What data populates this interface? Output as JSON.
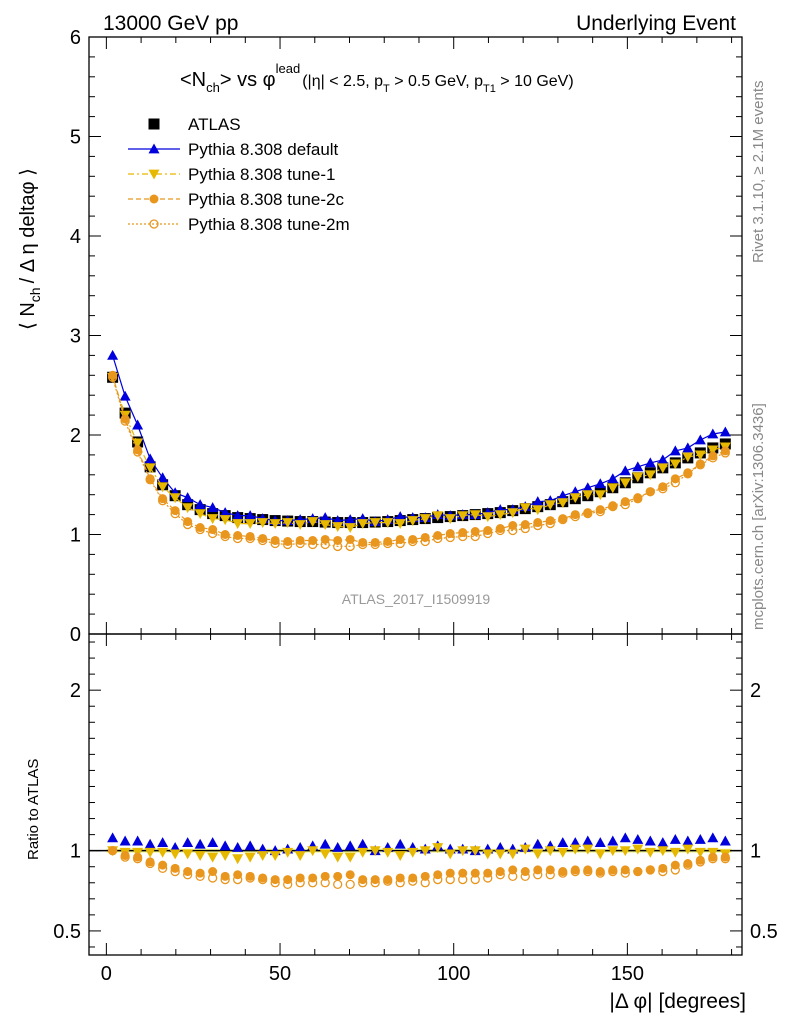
{
  "header": {
    "left": "13000 GeV pp",
    "right": "Underlying Event"
  },
  "side_text": {
    "rivet": "Rivet 3.1.10, ≥ 2.1M events",
    "mcplots": "mcplots.cern.ch [arXiv:1306.3436]"
  },
  "watermark": "ATLAS_2017_I1509919",
  "plot_title": {
    "main": "<N",
    "main_sub": "ch",
    "vs": "> vs φ",
    "vs_sup": "lead",
    "cuts_1": "(|η| < 2.5, p",
    "cuts_1_sub": "T",
    "cuts_2": " > 0.5 GeV, p",
    "cuts_2_sub": "T1",
    "cuts_3": " > 10 GeV)"
  },
  "ylabel_main": {
    "part1": "⟨ N",
    "sub": "ch",
    "part2": "/ Δ η deltaφ ⟩"
  },
  "ylabel_ratio": "Ratio to ATLAS",
  "xlabel": "|Δ φ| [degrees]",
  "colors": {
    "atlas": "#000000",
    "default": "#0000dd",
    "tune1": "#e6b800",
    "tune2c": "#e8961e",
    "tune2m": "#e8961e",
    "band": "#f0f58a"
  },
  "chart_data": [
    {
      "type": "scatter",
      "panel": "main",
      "xlim": [
        -5,
        183
      ],
      "ylim": [
        0,
        6
      ],
      "yticks": [
        "0",
        "1",
        "2",
        "3",
        "4",
        "5",
        "6"
      ],
      "x": [
        1.8,
        5.4,
        9.0,
        12.6,
        16.2,
        19.8,
        23.4,
        27.0,
        30.6,
        34.2,
        37.8,
        41.4,
        45.0,
        48.6,
        52.2,
        55.8,
        59.4,
        63.0,
        66.6,
        70.2,
        73.8,
        77.4,
        81.0,
        84.6,
        88.2,
        91.8,
        95.4,
        99.0,
        102.6,
        106.2,
        109.8,
        113.4,
        117.0,
        120.6,
        124.2,
        127.8,
        131.4,
        135.0,
        138.6,
        142.2,
        145.8,
        149.4,
        153.0,
        156.6,
        160.2,
        163.8,
        167.4,
        171.0,
        174.6,
        178.2
      ],
      "series": [
        {
          "name": "ATLAS",
          "marker": "square",
          "values": [
            2.58,
            2.22,
            1.93,
            1.68,
            1.5,
            1.39,
            1.3,
            1.25,
            1.21,
            1.19,
            1.17,
            1.16,
            1.15,
            1.14,
            1.135,
            1.13,
            1.13,
            1.125,
            1.12,
            1.12,
            1.12,
            1.125,
            1.13,
            1.14,
            1.15,
            1.16,
            1.17,
            1.18,
            1.19,
            1.2,
            1.21,
            1.22,
            1.24,
            1.26,
            1.28,
            1.3,
            1.33,
            1.36,
            1.39,
            1.43,
            1.47,
            1.52,
            1.57,
            1.62,
            1.67,
            1.72,
            1.77,
            1.82,
            1.87,
            1.91
          ]
        },
        {
          "name": "Pythia 8.308 default",
          "marker": "triangle-up",
          "values": [
            2.8,
            2.39,
            2.1,
            1.76,
            1.57,
            1.42,
            1.37,
            1.3,
            1.27,
            1.22,
            1.19,
            1.19,
            1.16,
            1.14,
            1.14,
            1.15,
            1.16,
            1.17,
            1.14,
            1.15,
            1.16,
            1.13,
            1.15,
            1.18,
            1.17,
            1.17,
            1.2,
            1.19,
            1.2,
            1.2,
            1.22,
            1.25,
            1.25,
            1.28,
            1.33,
            1.34,
            1.39,
            1.43,
            1.47,
            1.51,
            1.56,
            1.64,
            1.68,
            1.72,
            1.75,
            1.84,
            1.87,
            1.95,
            2.01,
            2.03
          ]
        },
        {
          "name": "Pythia 8.308 tune-1",
          "marker": "triangle-down",
          "values": [
            2.58,
            2.2,
            1.92,
            1.67,
            1.48,
            1.37,
            1.27,
            1.21,
            1.16,
            1.15,
            1.11,
            1.11,
            1.12,
            1.11,
            1.12,
            1.1,
            1.13,
            1.1,
            1.08,
            1.07,
            1.11,
            1.12,
            1.12,
            1.11,
            1.14,
            1.16,
            1.19,
            1.16,
            1.19,
            1.2,
            1.18,
            1.2,
            1.22,
            1.27,
            1.25,
            1.3,
            1.32,
            1.37,
            1.4,
            1.4,
            1.47,
            1.52,
            1.58,
            1.6,
            1.67,
            1.71,
            1.78,
            1.8,
            1.85,
            1.88
          ]
        },
        {
          "name": "Pythia 8.308 tune-2c",
          "marker": "circle",
          "values": [
            2.6,
            2.16,
            1.85,
            1.56,
            1.36,
            1.24,
            1.13,
            1.07,
            1.05,
            1.0,
            0.99,
            0.98,
            0.96,
            0.94,
            0.93,
            0.94,
            0.94,
            0.95,
            0.94,
            0.95,
            0.92,
            0.92,
            0.93,
            0.95,
            0.95,
            0.97,
            0.99,
            1.01,
            1.02,
            1.03,
            1.04,
            1.06,
            1.09,
            1.1,
            1.12,
            1.14,
            1.16,
            1.2,
            1.22,
            1.25,
            1.29,
            1.33,
            1.37,
            1.43,
            1.48,
            1.56,
            1.62,
            1.71,
            1.79,
            1.84
          ]
        },
        {
          "name": "Pythia 8.308 tune-2m",
          "marker": "circle-open",
          "values": [
            2.58,
            2.14,
            1.83,
            1.55,
            1.34,
            1.21,
            1.1,
            1.05,
            1.01,
            0.98,
            0.96,
            0.96,
            0.94,
            0.91,
            0.9,
            0.91,
            0.9,
            0.9,
            0.88,
            0.88,
            0.9,
            0.9,
            0.91,
            0.91,
            0.93,
            0.93,
            0.96,
            0.97,
            0.98,
            0.98,
            1.01,
            1.04,
            1.04,
            1.06,
            1.09,
            1.11,
            1.15,
            1.18,
            1.21,
            1.23,
            1.28,
            1.3,
            1.36,
            1.43,
            1.46,
            1.52,
            1.61,
            1.7,
            1.77,
            1.82
          ]
        }
      ]
    },
    {
      "type": "scatter",
      "panel": "ratio",
      "xlim": [
        -5,
        183
      ],
      "ylim": [
        0.35,
        2.35
      ],
      "yticks": [
        "0.5",
        "1",
        "2"
      ],
      "xticks": [
        "0",
        "50",
        "100",
        "150"
      ],
      "x": [
        1.8,
        5.4,
        9.0,
        12.6,
        16.2,
        19.8,
        23.4,
        27.0,
        30.6,
        34.2,
        37.8,
        41.4,
        45.0,
        48.6,
        52.2,
        55.8,
        59.4,
        63.0,
        66.6,
        70.2,
        73.8,
        77.4,
        81.0,
        84.6,
        88.2,
        91.8,
        95.4,
        99.0,
        102.6,
        106.2,
        109.8,
        113.4,
        117.0,
        120.6,
        124.2,
        127.8,
        131.4,
        135.0,
        138.6,
        142.2,
        145.8,
        149.4,
        153.0,
        156.6,
        160.2,
        163.8,
        167.4,
        171.0,
        174.6,
        178.2
      ],
      "series": [
        {
          "name": "Pythia 8.308 default",
          "values": [
            1.08,
            1.06,
            1.06,
            1.04,
            1.05,
            1.02,
            1.05,
            1.04,
            1.05,
            1.03,
            1.02,
            1.03,
            1.01,
            1.0,
            1.01,
            1.02,
            1.03,
            1.04,
            1.02,
            1.03,
            1.04,
            1.0,
            1.02,
            1.04,
            1.02,
            1.01,
            1.03,
            1.01,
            1.01,
            1.0,
            1.01,
            1.02,
            1.01,
            1.02,
            1.04,
            1.03,
            1.05,
            1.05,
            1.06,
            1.05,
            1.06,
            1.08,
            1.07,
            1.06,
            1.05,
            1.07,
            1.06,
            1.07,
            1.08,
            1.06
          ]
        },
        {
          "name": "Pythia 8.308 tune-1",
          "values": [
            1.0,
            0.99,
            0.99,
            0.99,
            0.99,
            0.98,
            0.98,
            0.97,
            0.96,
            0.97,
            0.95,
            0.96,
            0.97,
            0.97,
            0.99,
            0.97,
            1.0,
            0.98,
            0.96,
            0.96,
            0.99,
            1.0,
            0.99,
            0.97,
            0.99,
            1.0,
            1.02,
            0.98,
            1.0,
            1.0,
            0.98,
            0.98,
            0.98,
            1.01,
            0.98,
            1.0,
            0.99,
            1.01,
            1.01,
            0.98,
            1.0,
            1.0,
            1.01,
            0.99,
            1.0,
            0.99,
            1.01,
            0.99,
            0.99,
            0.98
          ]
        },
        {
          "name": "Pythia 8.308 tune-2c",
          "values": [
            1.0,
            0.97,
            0.96,
            0.93,
            0.91,
            0.89,
            0.87,
            0.86,
            0.87,
            0.84,
            0.85,
            0.84,
            0.83,
            0.82,
            0.82,
            0.83,
            0.83,
            0.84,
            0.84,
            0.85,
            0.82,
            0.82,
            0.82,
            0.83,
            0.83,
            0.84,
            0.85,
            0.86,
            0.86,
            0.86,
            0.86,
            0.87,
            0.88,
            0.87,
            0.88,
            0.88,
            0.87,
            0.88,
            0.88,
            0.87,
            0.88,
            0.88,
            0.87,
            0.88,
            0.89,
            0.91,
            0.92,
            0.94,
            0.96,
            0.96
          ]
        },
        {
          "name": "Pythia 8.308 tune-2m",
          "values": [
            1.0,
            0.96,
            0.95,
            0.92,
            0.89,
            0.87,
            0.85,
            0.84,
            0.83,
            0.82,
            0.82,
            0.83,
            0.82,
            0.8,
            0.79,
            0.8,
            0.8,
            0.8,
            0.79,
            0.79,
            0.8,
            0.8,
            0.81,
            0.8,
            0.81,
            0.8,
            0.82,
            0.82,
            0.82,
            0.82,
            0.83,
            0.85,
            0.84,
            0.84,
            0.85,
            0.85,
            0.86,
            0.87,
            0.87,
            0.86,
            0.87,
            0.86,
            0.87,
            0.88,
            0.87,
            0.88,
            0.91,
            0.93,
            0.95,
            0.95
          ]
        }
      ]
    }
  ],
  "legend": [
    {
      "label": "ATLAS",
      "marker": "square",
      "color": "#000000"
    },
    {
      "label": "Pythia 8.308 default",
      "marker": "triangle-up",
      "color": "#0000dd"
    },
    {
      "label": "Pythia 8.308 tune-1",
      "marker": "triangle-down",
      "color": "#e6b800"
    },
    {
      "label": "Pythia 8.308 tune-2c",
      "marker": "circle",
      "color": "#e8961e"
    },
    {
      "label": "Pythia 8.308 tune-2m",
      "marker": "circle-open",
      "color": "#e8961e"
    }
  ]
}
